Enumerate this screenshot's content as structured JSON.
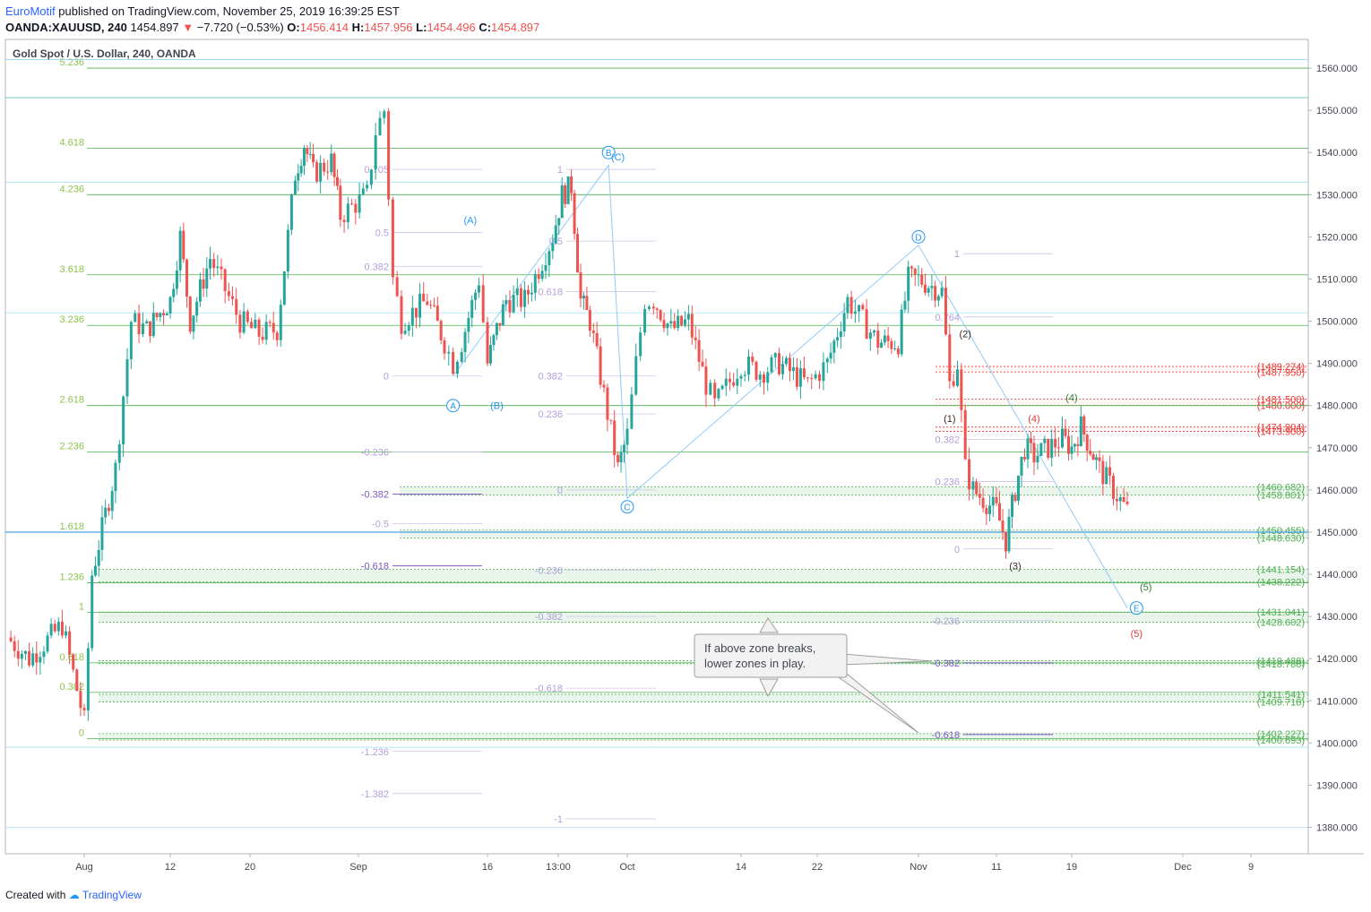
{
  "header": {
    "brand": "EuroMotif",
    "published": "published on TradingView.com, November 25, 2019 16:39:25 EST",
    "symbol": "OANDA:XAUUSD, 240",
    "last": "1454.897",
    "change": "−7.720 (−0.53%)",
    "o_label": "O:",
    "o": "1456.414",
    "h_label": "H:",
    "h": "1457.956",
    "l_label": "L:",
    "l": "1454.496",
    "c_label": "C:",
    "c": "1454.897"
  },
  "footer": {
    "created": "Created with",
    "tv": "TradingView"
  },
  "colors": {
    "up": "#26a69a",
    "down": "#ef5350",
    "fib_green": "#4caf50",
    "fib_purple": "#9575cd",
    "wave_blue": "#2196f3",
    "zone_red": "#e53935"
  },
  "chart_data": {
    "type": "candlestick",
    "title": "Gold Spot / U.S. Dollar, 240, OANDA",
    "xlabel": "",
    "ylabel": "",
    "ylim": [
      1375,
      1565
    ],
    "y_ticks": [
      1380,
      1390,
      1400,
      1410,
      1420,
      1430,
      1440,
      1450,
      1460,
      1470,
      1480,
      1490,
      1500,
      1510,
      1520,
      1530,
      1540,
      1550,
      1560
    ],
    "x_ticks": [
      "Aug",
      "12",
      "20",
      "Sep",
      "16",
      "13:00",
      "Oct",
      "14",
      "22",
      "Nov",
      "11",
      "19",
      "Dec",
      "9"
    ],
    "price_path": [
      [
        "Jul 25",
        1425
      ],
      [
        "Jul 27",
        1420
      ],
      [
        "Jul 30",
        1428
      ],
      [
        "Aug 1",
        1405
      ],
      [
        "Aug 2",
        1440
      ],
      [
        "Aug 5",
        1465
      ],
      [
        "Aug 7",
        1500
      ],
      [
        "Aug 9",
        1498
      ],
      [
        "Aug 12",
        1505
      ],
      [
        "Aug 13",
        1520
      ],
      [
        "Aug 14",
        1500
      ],
      [
        "Aug 16",
        1515
      ],
      [
        "Aug 19",
        1500
      ],
      [
        "Aug 21",
        1497
      ],
      [
        "Aug 23",
        1498
      ],
      [
        "Aug 25",
        1535
      ],
      [
        "Aug 26",
        1542
      ],
      [
        "Aug 27",
        1535
      ],
      [
        "Aug 29",
        1538
      ],
      [
        "Aug 30",
        1525
      ],
      [
        "Sep 2",
        1530
      ],
      [
        "Sep 3",
        1545
      ],
      [
        "Sep 4",
        1550
      ],
      [
        "Sep 5",
        1510
      ],
      [
        "Sep 6",
        1500
      ],
      [
        "Sep 9",
        1505
      ],
      [
        "Sep 11",
        1495
      ],
      [
        "Sep 12",
        1490
      ],
      [
        "Sep 13",
        1495
      ],
      [
        "Sep 15",
        1510
      ],
      [
        "Sep 16",
        1490
      ],
      [
        "Sep 17",
        1498
      ],
      [
        "Sep 18",
        1505
      ],
      [
        "Sep 20",
        1505
      ],
      [
        "Sep 23",
        1520
      ],
      [
        "Sep 24",
        1530
      ],
      [
        "Sep 25",
        1532
      ],
      [
        "Sep 26",
        1505
      ],
      [
        "Sep 27",
        1500
      ],
      [
        "Sep 30",
        1465
      ],
      [
        "Oct 1",
        1473
      ],
      [
        "Oct 2",
        1490
      ],
      [
        "Oct 3",
        1505
      ],
      [
        "Oct 4",
        1505
      ],
      [
        "Oct 6",
        1498
      ],
      [
        "Oct 8",
        1500
      ],
      [
        "Oct 10",
        1485
      ],
      [
        "Oct 11",
        1480
      ],
      [
        "Oct 14",
        1490
      ],
      [
        "Oct 16",
        1488
      ],
      [
        "Oct 18",
        1490
      ],
      [
        "Oct 21",
        1485
      ],
      [
        "Oct 23",
        1490
      ],
      [
        "Oct 25",
        1505
      ],
      [
        "Oct 28",
        1495
      ],
      [
        "Oct 30",
        1495
      ],
      [
        "Oct 31",
        1510
      ],
      [
        "Nov 1",
        1510
      ],
      [
        "Nov 4",
        1507
      ],
      [
        "Nov 5",
        1485
      ],
      [
        "Nov 6",
        1490
      ],
      [
        "Nov 7",
        1465
      ],
      [
        "Nov 8",
        1460
      ],
      [
        "Nov 11",
        1455
      ],
      [
        "Nov 12",
        1448
      ],
      [
        "Nov 13",
        1460
      ],
      [
        "Nov 14",
        1470
      ],
      [
        "Nov 15",
        1468
      ],
      [
        "Nov 18",
        1472
      ],
      [
        "Nov 19",
        1470
      ],
      [
        "Nov 20",
        1475
      ],
      [
        "Nov 21",
        1470
      ],
      [
        "Nov 22",
        1465
      ],
      [
        "Nov 25",
        1455
      ]
    ],
    "left_fib": {
      "color": "#4caf50",
      "levels": [
        [
          "5.236",
          1560
        ],
        [
          "4.618",
          1541
        ],
        [
          "4.236",
          1530
        ],
        [
          "3.618",
          1511
        ],
        [
          "3.236",
          1499
        ],
        [
          "2.618",
          1480
        ],
        [
          "2.236",
          1469
        ],
        [
          "1.618",
          1450
        ],
        [
          "1.236",
          1438
        ],
        [
          "1",
          1431
        ],
        [
          "0.618",
          1419
        ],
        [
          "0.382",
          1412
        ],
        [
          "0",
          1401
        ]
      ]
    },
    "mid_fib_labels": [
      [
        "0.705",
        1536
      ],
      [
        "0.5",
        1521
      ],
      [
        "0.382",
        1513
      ],
      [
        "0",
        1487
      ],
      [
        "-0.236",
        1469
      ],
      [
        "-0.382",
        1459
      ],
      [
        "-0.5",
        1452
      ],
      [
        "-0.618",
        1442
      ],
      [
        "-1.236",
        1398
      ],
      [
        "-1.382",
        1388
      ],
      [
        "1",
        1536
      ],
      [
        "0.5",
        1519
      ],
      [
        "0.618",
        1507
      ],
      [
        "0.382",
        1487
      ],
      [
        "0.236",
        1478
      ],
      [
        "0",
        1460
      ],
      [
        "-0.236",
        1441
      ],
      [
        "-0.382",
        1430
      ],
      [
        "-0.618",
        1413
      ],
      [
        "-1",
        1382
      ],
      [
        "1",
        1516
      ],
      [
        "0.764",
        1501
      ],
      [
        "0.382",
        1472
      ],
      [
        "0.236",
        1462
      ],
      [
        "0",
        1446
      ],
      [
        "-0.236",
        1429
      ],
      [
        "-0.382",
        1419
      ],
      [
        "-0.618",
        1402
      ]
    ],
    "wave_labels": [
      [
        "A",
        1480,
        "circle",
        "#2196f3"
      ],
      [
        "B",
        1540,
        "circle",
        "#2196f3"
      ],
      [
        "C",
        1456,
        "circle",
        "#2196f3"
      ],
      [
        "D",
        1520,
        "circle",
        "#2196f3"
      ],
      [
        "E",
        1432,
        "circle",
        "#2196f3"
      ],
      [
        "(A)",
        1524,
        "text",
        "#2196f3"
      ],
      [
        "(B)",
        1480,
        "text",
        "#2196f3"
      ],
      [
        "(C)",
        1539,
        "text",
        "#2196f3"
      ],
      [
        "(1)",
        1477,
        "text",
        "#3e2723"
      ],
      [
        "(2)",
        1497,
        "text",
        "#3e2723"
      ],
      [
        "(3)",
        1442,
        "text",
        "#3e2723"
      ],
      [
        "(4)",
        1477,
        "text",
        "#e53935"
      ],
      [
        "(5)",
        1426,
        "text",
        "#e53935"
      ],
      [
        "(4)",
        1482,
        "text",
        "#2e7d32"
      ],
      [
        "(5)",
        1437,
        "text",
        "#2e7d32"
      ]
    ],
    "zones_right": [
      [
        "(1489.274)",
        1489.27,
        "#e53935"
      ],
      [
        "(1487.950)",
        1487.95,
        "#e53935"
      ],
      [
        "(1481.500)",
        1481.5,
        "#e53935"
      ],
      [
        "(1480.000)",
        1480.0,
        "#e53935"
      ],
      [
        "(1474.904)",
        1474.9,
        "#e53935"
      ],
      [
        "(1473.900)",
        1473.9,
        "#e53935"
      ],
      [
        "(1460.682)",
        1460.68,
        "#4caf50"
      ],
      [
        "(1458.801)",
        1458.8,
        "#4caf50"
      ],
      [
        "(1450.455)",
        1450.46,
        "#4caf50"
      ],
      [
        "(1448.630)",
        1448.63,
        "#4caf50"
      ],
      [
        "(1441.154)",
        1441.15,
        "#4caf50"
      ],
      [
        "(1438.222)",
        1438.22,
        "#4caf50"
      ],
      [
        "(1431.041)",
        1431.04,
        "#4caf50"
      ],
      [
        "(1428.602)",
        1428.6,
        "#4caf50"
      ],
      [
        "(1419.488)",
        1419.49,
        "#4caf50"
      ],
      [
        "(1418.788)",
        1418.79,
        "#4caf50"
      ],
      [
        "(1411.541)",
        1411.54,
        "#4caf50"
      ],
      [
        "(1409.718)",
        1409.72,
        "#4caf50"
      ],
      [
        "(1402.227)",
        1402.23,
        "#4caf50"
      ],
      [
        "(1400.693)",
        1400.69,
        "#4caf50"
      ]
    ],
    "annotation": "If above zone breaks, lower zones in play."
  }
}
